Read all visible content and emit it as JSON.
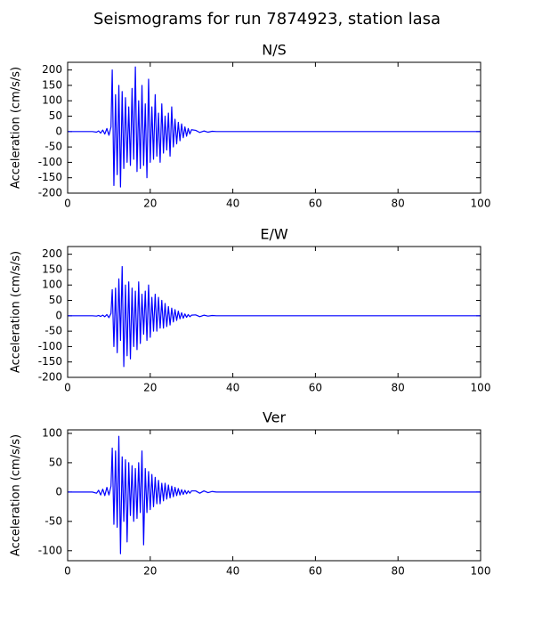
{
  "title": "Seismograms for run 7874923, station lasa",
  "chart_data": [
    {
      "type": "line",
      "title": "N/S",
      "y_label": "Acceleration (cm/s/s)",
      "color": "#0000ff",
      "x": [
        0,
        6,
        7,
        7.5,
        8,
        8.5,
        9,
        9.5,
        10,
        10.5,
        10.8,
        11.2,
        11.6,
        12,
        12.4,
        12.8,
        13.2,
        13.6,
        14,
        14.4,
        14.8,
        15.2,
        15.6,
        16,
        16.4,
        16.8,
        17.2,
        17.6,
        18,
        18.4,
        18.8,
        19.2,
        19.6,
        20,
        20.4,
        20.8,
        21.2,
        21.6,
        22,
        22.4,
        22.8,
        23.2,
        23.6,
        24,
        24.4,
        24.8,
        25.2,
        25.6,
        26,
        26.4,
        26.8,
        27.2,
        27.6,
        28,
        28.4,
        28.8,
        29.2,
        29.6,
        30,
        31,
        32,
        33,
        34,
        35,
        36,
        38,
        40,
        100
      ],
      "values": [
        0,
        0,
        -2,
        2,
        -5,
        5,
        -8,
        10,
        -12,
        15,
        200,
        -175,
        120,
        -140,
        150,
        -180,
        130,
        -120,
        110,
        -100,
        80,
        -110,
        140,
        -90,
        210,
        -130,
        100,
        -120,
        150,
        -110,
        90,
        -150,
        170,
        -100,
        80,
        -90,
        120,
        -80,
        60,
        -100,
        90,
        -70,
        50,
        -60,
        60,
        -80,
        80,
        -50,
        40,
        -40,
        30,
        -30,
        25,
        -20,
        15,
        -15,
        10,
        -8,
        6,
        4,
        -3,
        2,
        -2,
        1,
        0,
        0,
        0,
        0
      ],
      "xlim": [
        0,
        100
      ],
      "xticks": [
        0,
        20,
        40,
        60,
        80,
        100
      ],
      "ylim": [
        -200,
        225
      ],
      "yticks": [
        -200,
        -150,
        -100,
        -50,
        0,
        50,
        100,
        150,
        200
      ]
    },
    {
      "type": "line",
      "title": "E/W",
      "y_label": "Acceleration (cm/s/s)",
      "color": "#0000ff",
      "x": [
        0,
        6,
        7,
        7.5,
        8,
        8.5,
        9,
        9.5,
        10,
        10.5,
        10.8,
        11.2,
        11.6,
        12,
        12.4,
        12.8,
        13.2,
        13.6,
        14,
        14.4,
        14.8,
        15.2,
        15.6,
        16,
        16.4,
        16.8,
        17.2,
        17.6,
        18,
        18.4,
        18.8,
        19.2,
        19.6,
        20,
        20.4,
        20.8,
        21.2,
        21.6,
        22,
        22.4,
        22.8,
        23.2,
        23.6,
        24,
        24.4,
        24.8,
        25.2,
        25.6,
        26,
        26.4,
        26.8,
        27.2,
        27.6,
        28,
        28.4,
        28.8,
        29.2,
        29.6,
        30,
        31,
        32,
        33,
        34,
        35,
        36,
        38,
        40,
        100
      ],
      "values": [
        0,
        0,
        -1,
        1,
        -2,
        2,
        -3,
        4,
        -6,
        8,
        85,
        -100,
        90,
        -120,
        120,
        -80,
        160,
        -165,
        100,
        -130,
        110,
        -140,
        90,
        -100,
        80,
        -110,
        110,
        -90,
        70,
        -60,
        80,
        -80,
        100,
        -70,
        60,
        -50,
        70,
        -50,
        60,
        -40,
        50,
        -40,
        40,
        -35,
        30,
        -30,
        25,
        -20,
        20,
        -15,
        15,
        -10,
        10,
        -8,
        6,
        -5,
        4,
        -3,
        2,
        3,
        -3,
        2,
        -1,
        1,
        0,
        0,
        0,
        0
      ],
      "xlim": [
        0,
        100
      ],
      "xticks": [
        0,
        20,
        40,
        60,
        80,
        100
      ],
      "ylim": [
        -200,
        225
      ],
      "yticks": [
        -200,
        -150,
        -100,
        -50,
        0,
        50,
        100,
        150,
        200
      ]
    },
    {
      "type": "line",
      "title": "Ver",
      "y_label": "Acceleration (cm/s/s)",
      "color": "#0000ff",
      "x": [
        0,
        6,
        7,
        7.5,
        8,
        8.5,
        9,
        9.5,
        10,
        10.5,
        10.8,
        11.2,
        11.6,
        12,
        12.4,
        12.8,
        13.2,
        13.6,
        14,
        14.4,
        14.8,
        15.2,
        15.6,
        16,
        16.4,
        16.8,
        17.2,
        17.6,
        18,
        18.4,
        18.8,
        19.2,
        19.6,
        20,
        20.4,
        20.8,
        21.2,
        21.6,
        22,
        22.4,
        22.8,
        23.2,
        23.6,
        24,
        24.4,
        24.8,
        25.2,
        25.6,
        26,
        26.4,
        26.8,
        27.2,
        27.6,
        28,
        28.4,
        28.8,
        29.2,
        29.6,
        30,
        31,
        32,
        33,
        34,
        35,
        36,
        38,
        40,
        100
      ],
      "values": [
        0,
        0,
        -2,
        3,
        -5,
        5,
        -6,
        8,
        -5,
        10,
        75,
        -55,
        70,
        -60,
        95,
        -105,
        60,
        -50,
        55,
        -85,
        50,
        -40,
        45,
        -50,
        40,
        -45,
        50,
        -35,
        70,
        -90,
        40,
        -35,
        35,
        -30,
        30,
        -25,
        25,
        -20,
        20,
        -20,
        15,
        -15,
        15,
        -12,
        12,
        -10,
        10,
        -8,
        8,
        -6,
        6,
        -5,
        4,
        -4,
        3,
        -3,
        2,
        -2,
        2,
        2,
        -2,
        2,
        -1,
        1,
        0,
        0,
        0,
        0
      ],
      "xlim": [
        0,
        100
      ],
      "xticks": [
        0,
        20,
        40,
        60,
        80,
        100
      ],
      "ylim": [
        -117,
        106
      ],
      "yticks": [
        -100,
        -50,
        0,
        50,
        100
      ]
    }
  ]
}
